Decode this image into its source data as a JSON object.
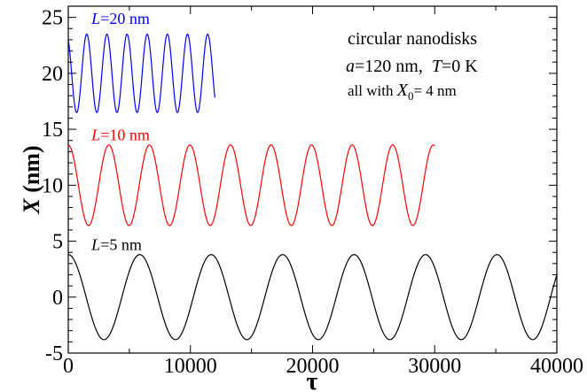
{
  "chart_data": {
    "type": "line",
    "xlabel": "τ",
    "ylabel_var": "X",
    "ylabel_unit": " (nm)",
    "xlim": [
      0,
      40000
    ],
    "ylim": [
      -5,
      26
    ],
    "x_ticks": [
      0,
      10000,
      20000,
      30000,
      40000
    ],
    "x_tick_labels": [
      "0",
      "10000",
      "20000",
      "30000",
      "40000"
    ],
    "y_ticks": [
      -5,
      0,
      5,
      10,
      15,
      20,
      25
    ],
    "y_tick_labels": [
      "-5",
      "0",
      "5",
      "10",
      "15",
      "20",
      "25"
    ],
    "grid": false,
    "legend": "none",
    "series": [
      {
        "name": "L=20 nm",
        "label_var": "L",
        "label_rest": "=20 nm",
        "color": "#0000ff",
        "center": 20.0,
        "amplitude": 3.5,
        "period": 1650,
        "phase_start_deg": 120,
        "x_end": 12000,
        "label_anchor_x": 1900,
        "label_anchor_y": 24.4
      },
      {
        "name": "L=10 nm",
        "label_var": "L",
        "label_rest": "=10 nm",
        "color": "#ff0000",
        "center": 10.0,
        "amplitude": 3.6,
        "period": 3320,
        "phase_start_deg": 90,
        "x_end": 30000,
        "label_anchor_x": 1900,
        "label_anchor_y": 14.0
      },
      {
        "name": "L=5 nm",
        "label_var": "L",
        "label_rest": "=5 nm",
        "color": "#000000",
        "center": 0.0,
        "amplitude": 3.8,
        "period": 5850,
        "phase_start_deg": 90,
        "x_end": 40000,
        "label_anchor_x": 1900,
        "label_anchor_y": 4.2
      }
    ],
    "annotations": [
      {
        "line1": "circular nanodisks"
      },
      {
        "a_var": "a",
        "a_rest": "=120 nm,  ",
        "t_var": "T",
        "t_rest": "=0 K"
      },
      {
        "prefix": "all with ",
        "x_var": "X",
        "x_sub": "0",
        "suffix": "= 4 nm"
      }
    ]
  }
}
